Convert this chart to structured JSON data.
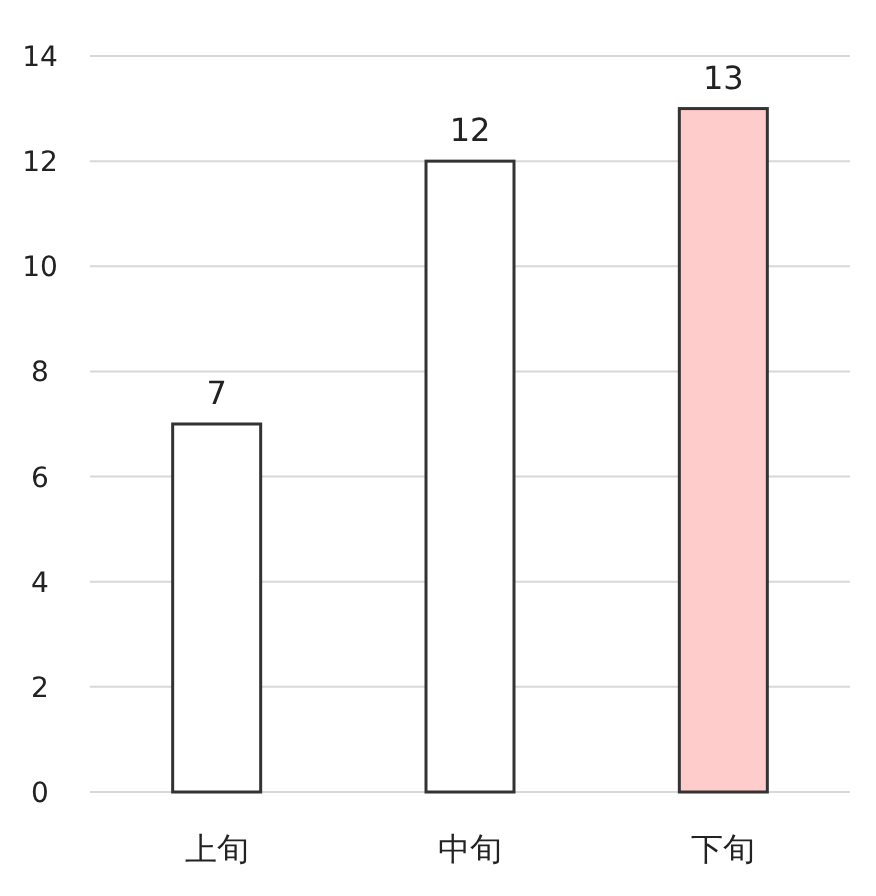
{
  "chart_data": {
    "type": "bar",
    "categories": [
      "上旬",
      "中旬",
      "下旬"
    ],
    "values": [
      7,
      12,
      13
    ],
    "colors": [
      "#ffffff",
      "#ffffff",
      "#ffcccc"
    ],
    "ylim": [
      0,
      14
    ],
    "yticks": [
      0,
      2,
      4,
      6,
      8,
      10,
      12,
      14
    ],
    "grid": "y",
    "data_labels": true
  }
}
